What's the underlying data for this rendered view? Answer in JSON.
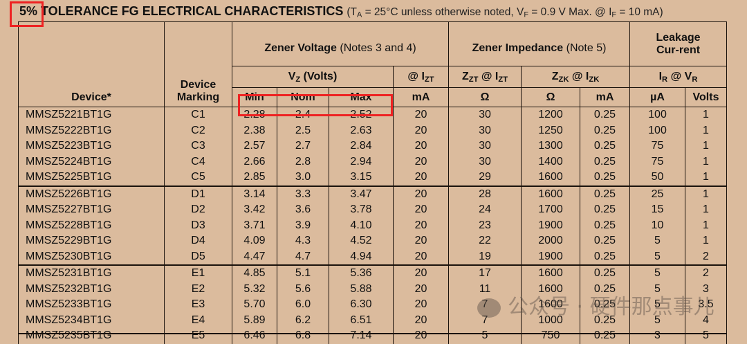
{
  "title": {
    "bold": "5% TOLERANCE FG ELECTRICAL CHARACTERISTICS",
    "note_pre": "(T",
    "note_ta_sub": "A",
    "note_mid": " = 25°C unless otherwise noted, V",
    "note_vf_sub": "F",
    "note_mid2": " = 0.9 V Max. @ I",
    "note_if_sub": "F",
    "note_end": " = 10 mA)"
  },
  "headers": {
    "device": "Device*",
    "marking": "Device Marking",
    "zener_voltage": "Zener Voltage",
    "zener_voltage_note": "(Notes 3 and 4)",
    "zener_impedance": "Zener Impedance",
    "zener_impedance_note": "(Note 5)",
    "leakage": "Leakage Cur-rent",
    "vz": "V",
    "vz_sub": "Z",
    "vz_unit": " (Volts)",
    "at_izt": "@ I",
    "at_izt_sub": "ZT",
    "zzt": "Z",
    "zzt_sub": "ZT",
    "zzt_at": " @ I",
    "zzt_at_sub": "ZT",
    "zzk": "Z",
    "zzk_sub": "ZK",
    "zzk_at": " @ I",
    "zzk_at_sub": "ZK",
    "ir": "I",
    "ir_sub": "R",
    "ir_at": " @ V",
    "ir_at_sub": "R",
    "units": [
      "Min",
      "Nom",
      "Max",
      "mA",
      "Ω",
      "Ω",
      "mA",
      "µA",
      "Volts"
    ]
  },
  "rows": [
    [
      "MMSZ5221BT1G",
      "C1",
      "2.28",
      "2.4",
      "2.52",
      "20",
      "30",
      "1200",
      "0.25",
      "100",
      "1"
    ],
    [
      "MMSZ5222BT1G",
      "C2",
      "2.38",
      "2.5",
      "2.63",
      "20",
      "30",
      "1250",
      "0.25",
      "100",
      "1"
    ],
    [
      "MMSZ5223BT1G",
      "C3",
      "2.57",
      "2.7",
      "2.84",
      "20",
      "30",
      "1300",
      "0.25",
      "75",
      "1"
    ],
    [
      "MMSZ5224BT1G",
      "C4",
      "2.66",
      "2.8",
      "2.94",
      "20",
      "30",
      "1400",
      "0.25",
      "75",
      "1"
    ],
    [
      "MMSZ5225BT1G",
      "C5",
      "2.85",
      "3.0",
      "3.15",
      "20",
      "29",
      "1600",
      "0.25",
      "50",
      "1"
    ],
    [
      "MMSZ5226BT1G",
      "D1",
      "3.14",
      "3.3",
      "3.47",
      "20",
      "28",
      "1600",
      "0.25",
      "25",
      "1"
    ],
    [
      "MMSZ5227BT1G",
      "D2",
      "3.42",
      "3.6",
      "3.78",
      "20",
      "24",
      "1700",
      "0.25",
      "15",
      "1"
    ],
    [
      "MMSZ5228BT1G",
      "D3",
      "3.71",
      "3.9",
      "4.10",
      "20",
      "23",
      "1900",
      "0.25",
      "10",
      "1"
    ],
    [
      "MMSZ5229BT1G",
      "D4",
      "4.09",
      "4.3",
      "4.52",
      "20",
      "22",
      "2000",
      "0.25",
      "5",
      "1"
    ],
    [
      "MMSZ5230BT1G",
      "D5",
      "4.47",
      "4.7",
      "4.94",
      "20",
      "19",
      "1900",
      "0.25",
      "5",
      "2"
    ],
    [
      "MMSZ5231BT1G",
      "E1",
      "4.85",
      "5.1",
      "5.36",
      "20",
      "17",
      "1600",
      "0.25",
      "5",
      "2"
    ],
    [
      "MMSZ5232BT1G",
      "E2",
      "5.32",
      "5.6",
      "5.88",
      "20",
      "11",
      "1600",
      "0.25",
      "5",
      "3"
    ],
    [
      "MMSZ5233BT1G",
      "E3",
      "5.70",
      "6.0",
      "6.30",
      "20",
      "7",
      "1600",
      "0.25",
      "5",
      "3.5"
    ],
    [
      "MMSZ5234BT1G",
      "E4",
      "5.89",
      "6.2",
      "6.51",
      "20",
      "7",
      "1000",
      "0.25",
      "5",
      "4"
    ],
    [
      "MMSZ5235BT1G",
      "E5",
      "6.46",
      "6.8",
      "7.14",
      "20",
      "5",
      "750",
      "0.25",
      "3",
      "5"
    ]
  ],
  "highlight_color": "#ee2222",
  "background_color": "#dbbb9d",
  "watermark": "公众号 · 硬件那点事儿"
}
